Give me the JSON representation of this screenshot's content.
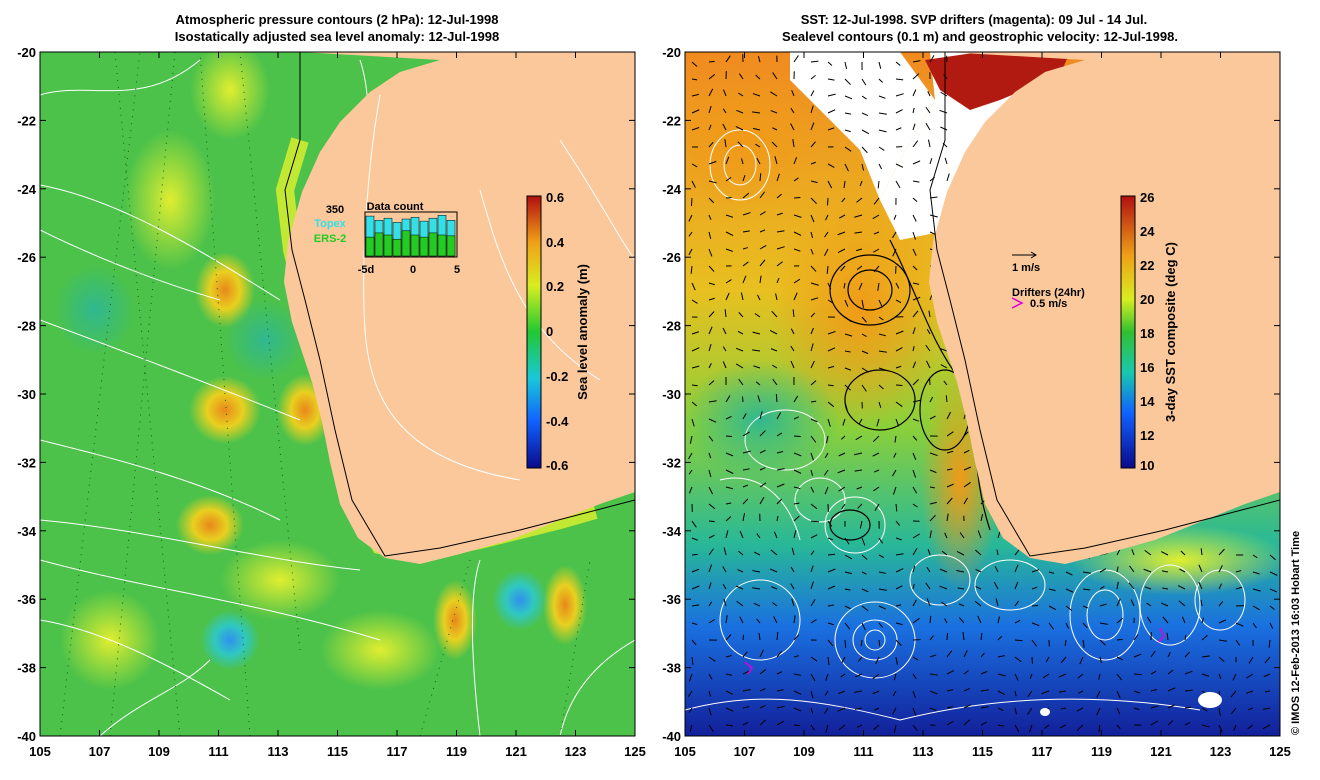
{
  "left_panel": {
    "title_line1": "Atmospheric pressure contours (2 hPa): 12-Jul-1998",
    "title_line2": "Isostatically adjusted sea level anomaly: 12-Jul-1998",
    "colorbar_label": "Sea level anomaly (m)",
    "colorbar_ticks": [
      "0.6",
      "0.4",
      "0.2",
      "0",
      "-0.2",
      "-0.4",
      "-0.6"
    ],
    "inset": {
      "count_value": "350",
      "series_topex": "Topex",
      "series_ers2": "ERS-2",
      "title": "Data count",
      "x_ticks": [
        "-5d",
        "0",
        "5"
      ],
      "topex_color": "#33e0e8",
      "ers2_color": "#22cc22",
      "bars_topex_fraction": [
        0.95,
        0.85,
        0.9,
        0.8,
        0.88,
        0.92,
        0.83,
        0.9,
        0.97,
        0.85
      ],
      "bars_ers2_fraction": [
        0.45,
        0.55,
        0.5,
        0.4,
        0.6,
        0.5,
        0.45,
        0.55,
        0.5,
        0.48
      ]
    }
  },
  "right_panel": {
    "title_line1": "SST: 12-Jul-1998. SVP drifters (magenta): 09 Jul - 14 Jul.",
    "title_line2": "Sealevel contours (0.1 m) and geostrophic velocity: 12-Jul-1998.",
    "colorbar_label": "3-day SST composite (deg C)",
    "colorbar_ticks": [
      "26",
      "24",
      "22",
      "20",
      "18",
      "16",
      "14",
      "12",
      "10"
    ],
    "velocity_scale_label": "1 m/s",
    "drifters_label": "Drifters (24hr)",
    "drifter_scale_label": "0.5 m/s",
    "drifter_color": "#e000e0"
  },
  "axes": {
    "x_ticks": [
      "105",
      "107",
      "109",
      "111",
      "113",
      "115",
      "117",
      "119",
      "121",
      "123",
      "125"
    ],
    "y_ticks": [
      "-20",
      "-22",
      "-24",
      "-26",
      "-28",
      "-30",
      "-32",
      "-34",
      "-36",
      "-38",
      "-40"
    ],
    "lon_range": [
      105,
      125
    ],
    "lat_range": [
      -40,
      -20
    ]
  },
  "credit": "© IMOS 12-Feb-2013 16:03 Hobart Time",
  "colors": {
    "land": "#fac89b",
    "ocean_left": "#4cc24a",
    "ocean_right_warm": "#f0a020",
    "ocean_right_cool": "#1a3fb0"
  }
}
